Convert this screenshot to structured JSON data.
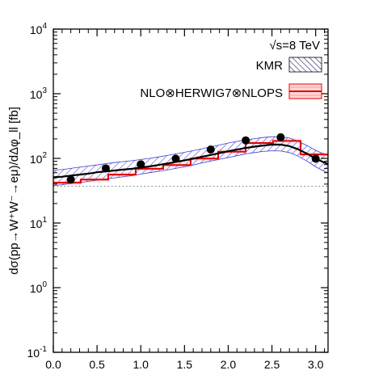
{
  "chart_data": {
    "type": "line",
    "ylabel": "dσ(pp→W⁺W⁻→eμ)/dΔφ_ll [fb]",
    "xlabel": "",
    "annotation": "√s=8 TeV",
    "ylog": true,
    "xlim": [
      0,
      3.14159
    ],
    "ylim": [
      0.1,
      10000
    ],
    "x_ticks": [
      "0.0",
      "0.5",
      "1.0",
      "1.5",
      "2.0",
      "2.5",
      "3.0"
    ],
    "x_tick_values": [
      0,
      0.5,
      1.0,
      1.5,
      2.0,
      2.5,
      3.0
    ],
    "y_ticks": [
      {
        "base": "10",
        "exp": "-1"
      },
      {
        "base": "10",
        "exp": "0"
      },
      {
        "base": "10",
        "exp": "1"
      },
      {
        "base": "10",
        "exp": "2"
      },
      {
        "base": "10",
        "exp": "3"
      },
      {
        "base": "10",
        "exp": "4"
      }
    ],
    "y_tick_values": [
      0.1,
      1,
      10,
      100,
      1000,
      10000
    ],
    "legend": [
      {
        "name": "KMR",
        "color": "#3a3ad0",
        "style": "hatched-band"
      },
      {
        "name": "NLO⊗HERWIG7⊗NLOPS",
        "color": "#e00000",
        "style": "red-band"
      }
    ],
    "dotted_line_y": 37,
    "series": [
      {
        "name": "KMR",
        "x": [
          0.0,
          0.1,
          0.2,
          0.3,
          0.4,
          0.5,
          0.6,
          0.7,
          0.8,
          0.9,
          1.0,
          1.1,
          1.2,
          1.3,
          1.4,
          1.5,
          1.6,
          1.7,
          1.8,
          1.9,
          2.0,
          2.1,
          2.2,
          2.3,
          2.4,
          2.5,
          2.6,
          2.7,
          2.8,
          2.9,
          3.0,
          3.1,
          3.14
        ],
        "y": [
          51,
          52,
          54,
          56,
          58,
          61,
          63,
          65,
          67,
          69,
          72,
          75,
          79,
          83,
          88,
          93,
          99,
          106,
          113,
          121,
          129,
          137,
          145,
          152,
          158,
          163,
          163,
          155,
          138,
          118,
          99,
          86,
          82
        ],
        "band_low": [
          38,
          39,
          41,
          42,
          44,
          46,
          48,
          50,
          52,
          54,
          57,
          60,
          63,
          66,
          70,
          74,
          79,
          85,
          91,
          97,
          103,
          110,
          117,
          123,
          128,
          131,
          130,
          123,
          108,
          91,
          74,
          63,
          60
        ],
        "band_high": [
          66,
          67,
          70,
          73,
          76,
          79,
          83,
          86,
          89,
          92,
          96,
          100,
          105,
          111,
          117,
          124,
          132,
          141,
          151,
          161,
          173,
          183,
          193,
          202,
          210,
          216,
          216,
          206,
          184,
          158,
          133,
          116,
          110
        ]
      },
      {
        "name": "NLO⊗HERWIG7⊗NLOPS",
        "bin_edges": [
          0.0,
          0.314,
          0.628,
          0.942,
          1.257,
          1.571,
          1.885,
          2.199,
          2.513,
          2.827,
          3.1416
        ],
        "values": [
          42,
          47,
          56,
          69,
          79,
          99,
          127,
          173,
          186,
          115
        ]
      },
      {
        "name": "points",
        "x": [
          0.2,
          0.6,
          1.0,
          1.4,
          1.8,
          2.2,
          2.6,
          3.0
        ],
        "y": [
          47,
          70,
          81,
          99,
          137,
          190,
          212,
          99
        ]
      }
    ]
  }
}
